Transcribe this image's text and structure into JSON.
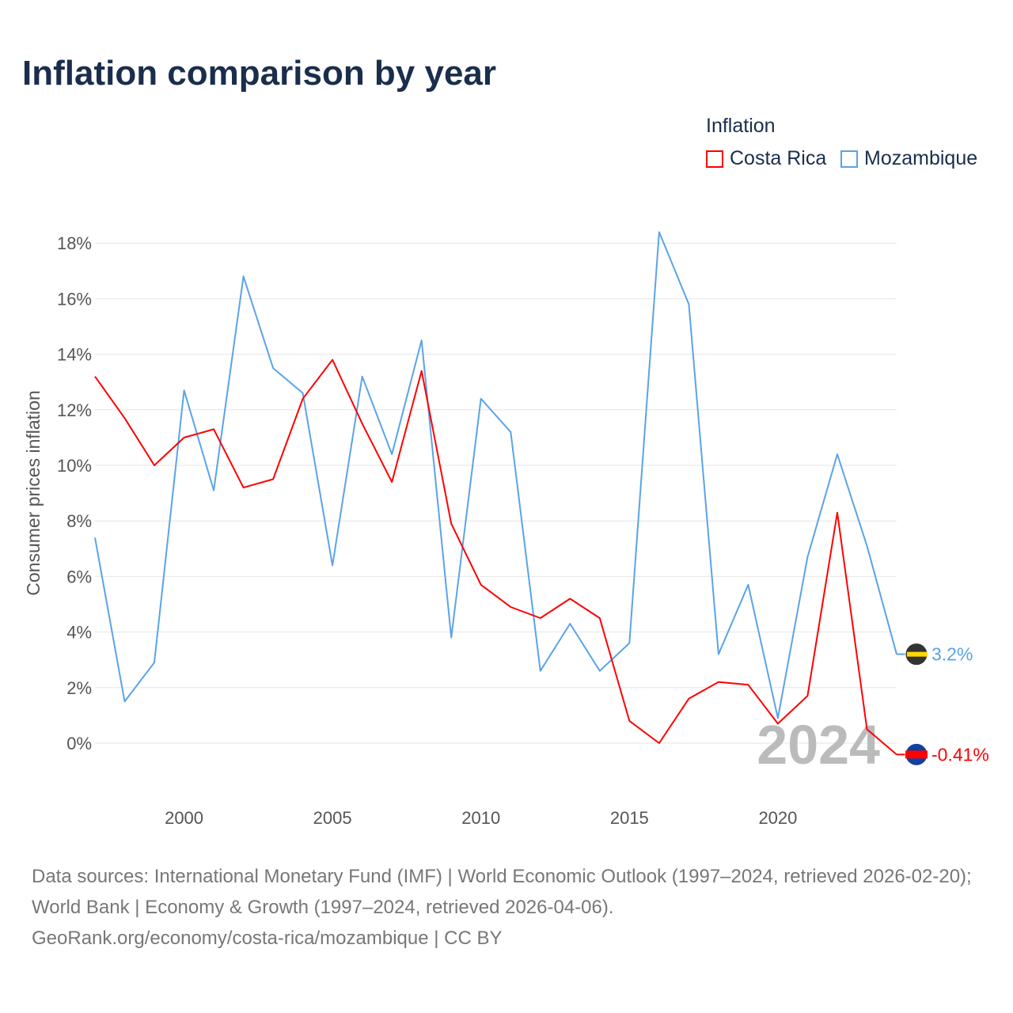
{
  "title": "Inflation comparison by year",
  "legend": {
    "title": "Inflation",
    "items": [
      {
        "name": "Costa Rica",
        "color": "#ff0000"
      },
      {
        "name": "Mozambique",
        "color": "#5ba3e8"
      }
    ]
  },
  "source": {
    "line1": "Data sources: International Monetary Fund (IMF) | World Economic Outlook (1997–2024, retrieved 2026-02-20); World Bank | Economy & Growth (1997–2024, retrieved 2026-04-06).",
    "line2": "GeoRank.org/economy/costa-rica/mozambique | CC BY"
  },
  "chart_data": {
    "type": "line",
    "title": "Inflation comparison by year",
    "xlabel": "",
    "ylabel": "Consumer prices inflation",
    "x": [
      1997,
      1998,
      1999,
      2000,
      2001,
      2002,
      2003,
      2004,
      2005,
      2006,
      2007,
      2008,
      2009,
      2010,
      2011,
      2012,
      2013,
      2014,
      2015,
      2016,
      2017,
      2018,
      2019,
      2020,
      2021,
      2022,
      2023,
      2024
    ],
    "xticks": [
      2000,
      2005,
      2010,
      2015,
      2020
    ],
    "yticks": [
      0,
      2,
      4,
      6,
      8,
      10,
      12,
      14,
      16,
      18
    ],
    "ytick_labels": [
      "0%",
      "2%",
      "4%",
      "6%",
      "8%",
      "10%",
      "12%",
      "14%",
      "16%",
      "18%"
    ],
    "ylim": [
      -1.5,
      19
    ],
    "xlim": [
      1997,
      2024
    ],
    "grid": true,
    "legend_position": "top-right",
    "year_watermark": "2024",
    "series": [
      {
        "name": "Costa Rica",
        "color": "#ff0000",
        "end_label": "-0.41%",
        "values": [
          13.2,
          11.7,
          10.0,
          11.0,
          11.3,
          9.2,
          9.5,
          12.4,
          13.8,
          11.5,
          9.4,
          13.4,
          7.9,
          5.7,
          4.9,
          4.5,
          5.2,
          4.5,
          0.8,
          0.0,
          1.6,
          2.2,
          2.1,
          0.7,
          1.7,
          8.3,
          0.5,
          -0.41
        ]
      },
      {
        "name": "Mozambique",
        "color": "#5ba3e8",
        "end_label": "3.2%",
        "values": [
          7.4,
          1.5,
          2.9,
          12.7,
          9.1,
          16.8,
          13.5,
          12.6,
          6.4,
          13.2,
          10.4,
          14.5,
          3.8,
          12.4,
          11.2,
          2.6,
          4.3,
          2.6,
          3.6,
          18.4,
          15.8,
          3.2,
          5.7,
          0.9,
          6.7,
          10.4,
          7.1,
          3.2
        ]
      }
    ]
  }
}
